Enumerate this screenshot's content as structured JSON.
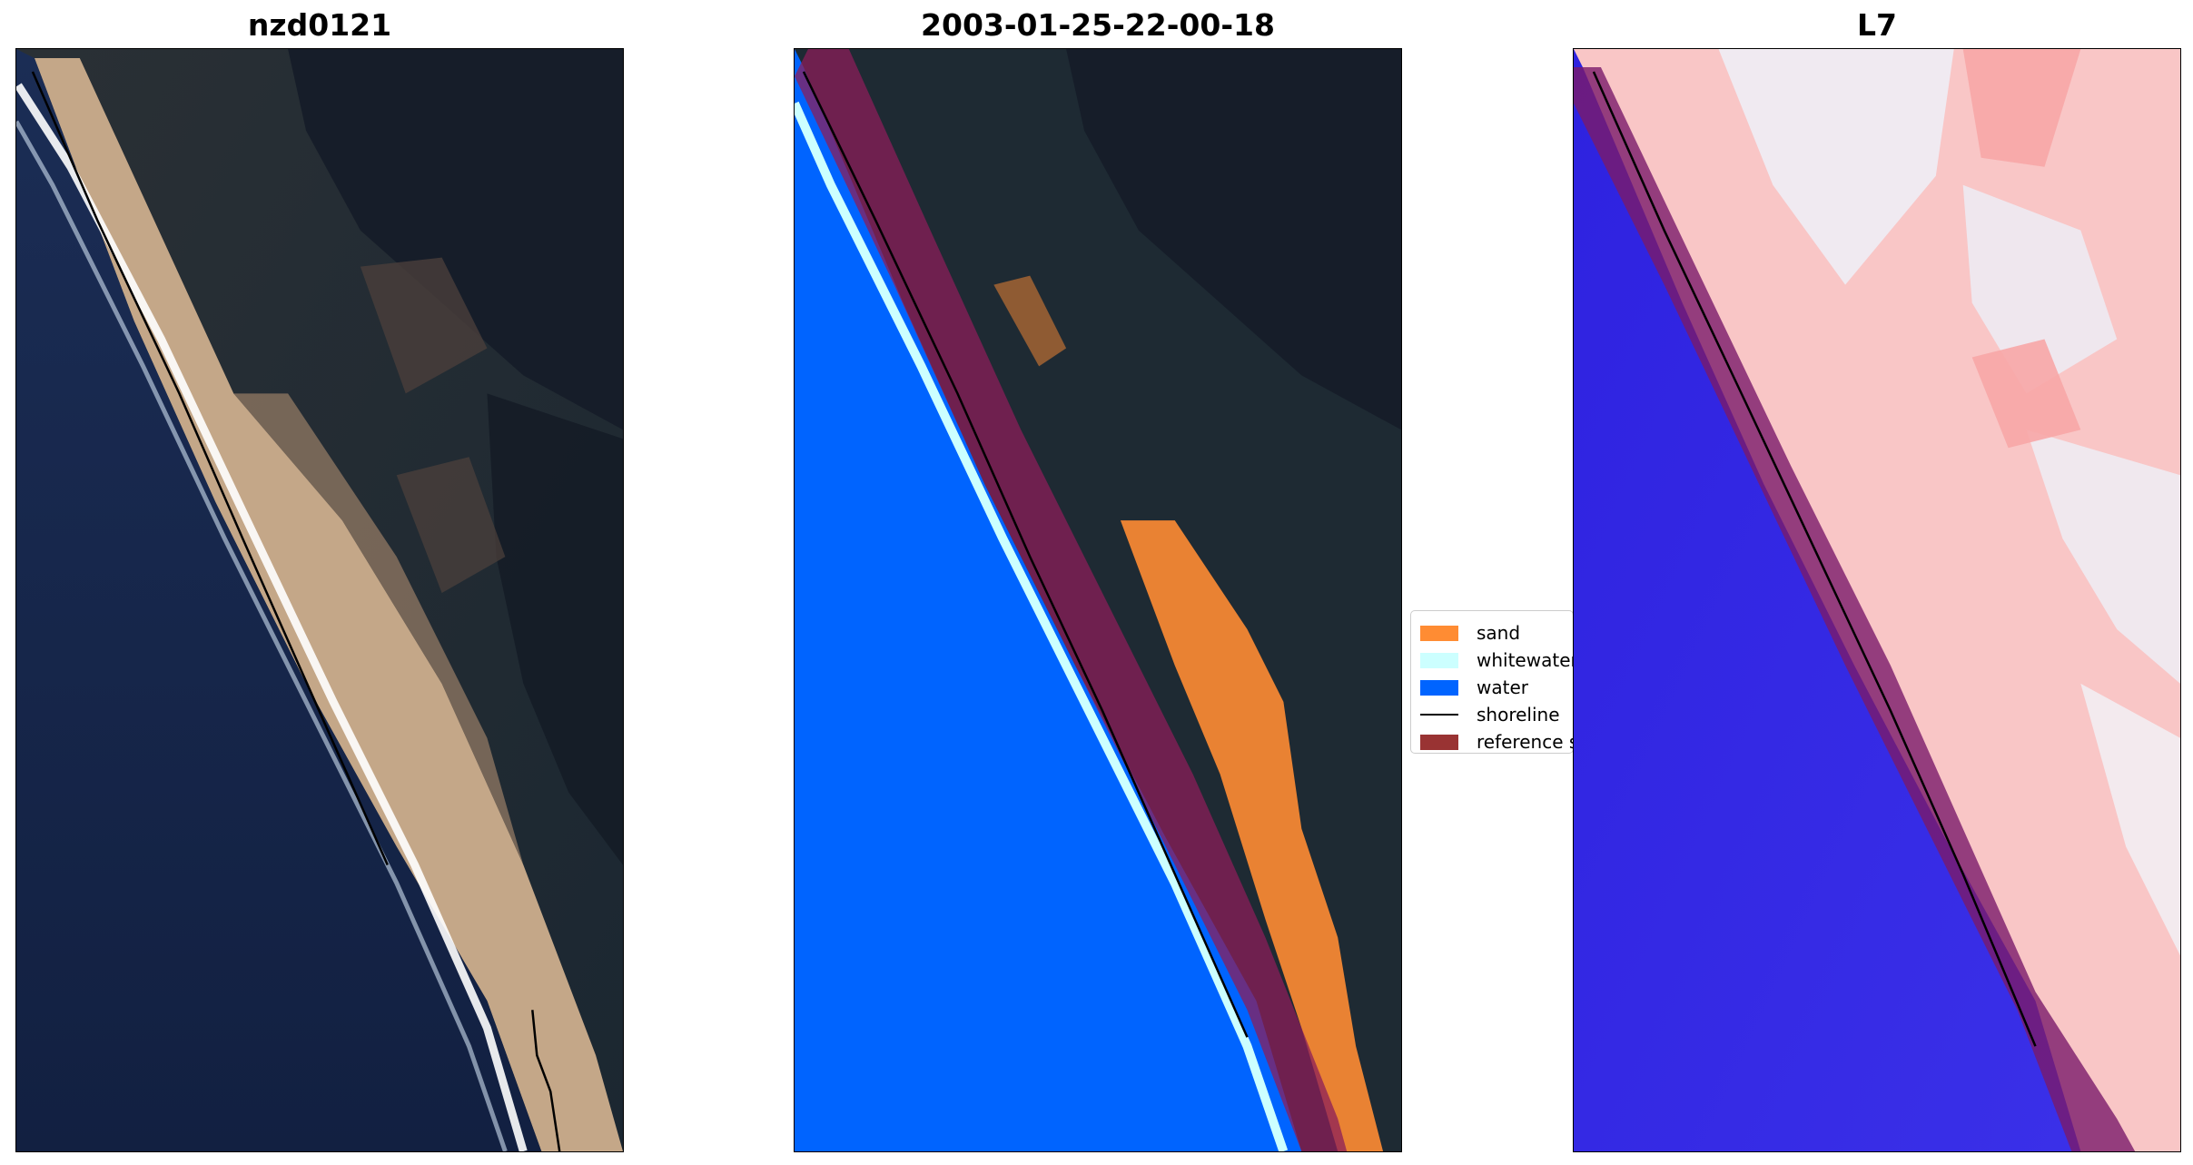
{
  "panels": [
    {
      "title": "nzd0121"
    },
    {
      "title": "2003-01-25-22-00-18"
    },
    {
      "title": "L7"
    }
  ],
  "legend": {
    "items": [
      {
        "label": "sand",
        "color": "#ff8c33",
        "kind": "patch"
      },
      {
        "label": "whitewater",
        "color": "#ccffff",
        "kind": "patch"
      },
      {
        "label": "water",
        "color": "#0064ff",
        "kind": "patch"
      },
      {
        "label": "shoreline",
        "color": "#000000",
        "kind": "line"
      },
      {
        "label": "reference s",
        "color": "#993333",
        "kind": "patch"
      }
    ]
  },
  "colors": {
    "ocean_rgb": "#15264a",
    "land_rgb": "#1e2a33",
    "beach_rgb": "#c9ab8d",
    "surf": "#ffffff",
    "reference_zone": "#8b1e5a",
    "index_water": "#2a22e6",
    "index_land": "#f7b3b3"
  }
}
